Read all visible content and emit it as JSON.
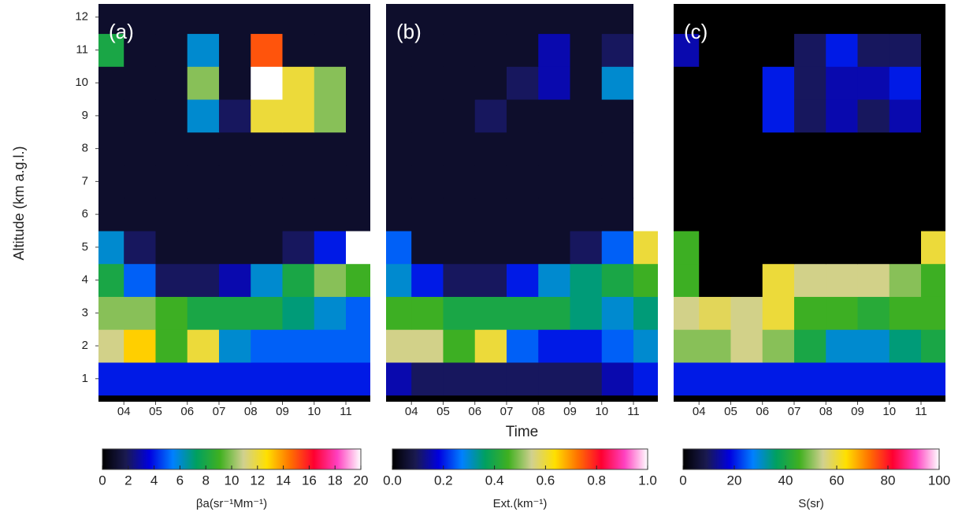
{
  "colormap": [
    "#000000",
    "#1a1a50",
    "#0000e0",
    "#0080ff",
    "#00a060",
    "#40b020",
    "#d0d090",
    "#ffe000",
    "#ff7000",
    "#ff0030",
    "#ff40c0",
    "#ffffff"
  ],
  "chart_data": [
    {
      "type": "heatmap",
      "annotation": "(a)",
      "y_label": "Altitude (km a.g.l.)",
      "x": [
        3.5,
        4.5,
        5.5,
        6.5,
        7.5,
        8.5,
        9.5,
        10.5,
        11.5
      ],
      "y": [
        1,
        2,
        3,
        4,
        5,
        6,
        7,
        8,
        9,
        10,
        11,
        12
      ],
      "z": [
        [
          4,
          4,
          4,
          4,
          4,
          4,
          4,
          4,
          4
        ],
        [
          11,
          13,
          9,
          12,
          6,
          5,
          5,
          5,
          5
        ],
        [
          10,
          10,
          9,
          8,
          8,
          8,
          7,
          6,
          5
        ],
        [
          8,
          5,
          2,
          2,
          3,
          6,
          8,
          10,
          9
        ],
        [
          6,
          2,
          1,
          1,
          1,
          1,
          2,
          4,
          20
        ],
        [
          1,
          1,
          1,
          1,
          1,
          1,
          1,
          1,
          1
        ],
        [
          1,
          1,
          1,
          1,
          1,
          1,
          1,
          1,
          1
        ],
        [
          1,
          1,
          1,
          1,
          1,
          1,
          1,
          1,
          1
        ],
        [
          1,
          1,
          1,
          6,
          2,
          12,
          12,
          10,
          1
        ],
        [
          1,
          1,
          1,
          10,
          1,
          20,
          12,
          10,
          1
        ],
        [
          8,
          1,
          1,
          6,
          1,
          15,
          1,
          1,
          1
        ],
        [
          1,
          1,
          1,
          1,
          1,
          1,
          1,
          1,
          1
        ]
      ],
      "xlim": [
        3.2,
        11.77
      ],
      "ylim": [
        0.3,
        12.4
      ],
      "xticks": [
        {
          "value": 4,
          "label": "04"
        },
        {
          "value": 5,
          "label": "05"
        },
        {
          "value": 6,
          "label": "06"
        },
        {
          "value": 7,
          "label": "07"
        },
        {
          "value": 8,
          "label": "08"
        },
        {
          "value": 9,
          "label": "09"
        },
        10,
        11
      ],
      "yticks": [
        1,
        2,
        3,
        4,
        5,
        6,
        7,
        8,
        9,
        10,
        11,
        12
      ],
      "colorbar": {
        "label": "βa(sr⁻¹Mm⁻¹)",
        "lim": [
          0,
          20
        ],
        "ticks": [
          0,
          2,
          4,
          6,
          8,
          10,
          12,
          14,
          16,
          18,
          20
        ]
      }
    },
    {
      "type": "heatmap",
      "annotation": "(b)",
      "x_label": "Time",
      "x": [
        3.5,
        4.5,
        5.5,
        6.5,
        7.5,
        8.5,
        9.5,
        10.5,
        11.5
      ],
      "y": [
        1,
        2,
        3,
        4,
        5,
        6,
        7,
        8,
        9,
        10,
        11,
        12
      ],
      "z": [
        [
          0.15,
          0.1,
          0.1,
          0.1,
          0.1,
          0.1,
          0.1,
          0.15,
          0.2
        ],
        [
          0.55,
          0.55,
          0.45,
          0.6,
          0.25,
          0.2,
          0.2,
          0.25,
          0.3
        ],
        [
          0.45,
          0.45,
          0.4,
          0.4,
          0.4,
          0.4,
          0.35,
          0.3,
          0.35
        ],
        [
          0.3,
          0.2,
          0.1,
          0.1,
          0.2,
          0.3,
          0.35,
          0.4,
          0.45
        ],
        [
          0.25,
          0.05,
          0.05,
          0.05,
          0.05,
          0.05,
          0.1,
          0.25,
          0.6
        ],
        [
          0.05,
          0.05,
          0.05,
          0.05,
          0.05,
          0.05,
          0.05,
          0.05,
          1.0
        ],
        [
          0.05,
          0.05,
          0.05,
          0.05,
          0.05,
          0.05,
          0.05,
          0.05,
          1.0
        ],
        [
          0.05,
          0.05,
          0.05,
          0.05,
          0.05,
          0.05,
          0.05,
          0.05,
          1.0
        ],
        [
          0.05,
          0.05,
          0.05,
          0.1,
          0.05,
          0.05,
          0.05,
          0.05,
          1.0
        ],
        [
          0.05,
          0.05,
          0.05,
          0.05,
          0.1,
          0.15,
          0.05,
          0.3,
          1.0
        ],
        [
          0.05,
          0.05,
          0.05,
          0.05,
          0.05,
          0.15,
          0.05,
          0.1,
          1.0
        ],
        [
          0.05,
          0.05,
          0.05,
          0.05,
          0.05,
          0.05,
          0.05,
          0.05,
          1.0
        ]
      ],
      "xlim": [
        3.2,
        11.77
      ],
      "ylim": [
        0.3,
        12.4
      ],
      "xticks": [
        {
          "value": 4,
          "label": "04"
        },
        {
          "value": 5,
          "label": "05"
        },
        {
          "value": 6,
          "label": "06"
        },
        {
          "value": 7,
          "label": "07"
        },
        {
          "value": 8,
          "label": "08"
        },
        {
          "value": 9,
          "label": "09"
        },
        10,
        11
      ],
      "colorbar": {
        "label": "Ext.(km⁻¹)",
        "lim": [
          0,
          1
        ],
        "ticks": [
          {
            "value": 0,
            "label": "0.0"
          },
          0.2,
          0.4,
          0.6,
          0.8,
          {
            "value": 1,
            "label": "1.0"
          }
        ]
      }
    },
    {
      "type": "heatmap",
      "annotation": "(c)",
      "x": [
        3.5,
        4.5,
        5.5,
        6.5,
        7.5,
        8.5,
        9.5,
        10.5,
        11.5
      ],
      "y": [
        1,
        2,
        3,
        4,
        5,
        6,
        7,
        8,
        9,
        10,
        11,
        12
      ],
      "z": [
        [
          20,
          20,
          20,
          20,
          20,
          20,
          20,
          20,
          20
        ],
        [
          50,
          50,
          55,
          50,
          40,
          30,
          30,
          35,
          40
        ],
        [
          55,
          58,
          55,
          60,
          45,
          45,
          42,
          45,
          45
        ],
        [
          45,
          0,
          0,
          60,
          55,
          55,
          55,
          50,
          45
        ],
        [
          45,
          0,
          0,
          0,
          0,
          0,
          0,
          0,
          60
        ],
        [
          0,
          0,
          0,
          0,
          0,
          0,
          0,
          0,
          0
        ],
        [
          0,
          0,
          0,
          0,
          0,
          0,
          0,
          0,
          0
        ],
        [
          0,
          0,
          0,
          0,
          0,
          0,
          0,
          0,
          0
        ],
        [
          0,
          0,
          0,
          20,
          10,
          15,
          10,
          15,
          0
        ],
        [
          0,
          0,
          0,
          20,
          10,
          15,
          15,
          20,
          0
        ],
        [
          15,
          0,
          0,
          0,
          10,
          20,
          10,
          10,
          0
        ],
        [
          0,
          0,
          0,
          0,
          0,
          0,
          0,
          0,
          0
        ]
      ],
      "xlim": [
        3.2,
        11.77
      ],
      "ylim": [
        0.3,
        12.4
      ],
      "xticks": [
        {
          "value": 4,
          "label": "04"
        },
        {
          "value": 5,
          "label": "05"
        },
        {
          "value": 6,
          "label": "06"
        },
        {
          "value": 7,
          "label": "07"
        },
        {
          "value": 8,
          "label": "08"
        },
        {
          "value": 9,
          "label": "09"
        },
        10,
        11
      ],
      "colorbar": {
        "label": "S(sr)",
        "lim": [
          0,
          100
        ],
        "ticks": [
          0,
          20,
          40,
          60,
          80,
          100
        ]
      }
    }
  ]
}
